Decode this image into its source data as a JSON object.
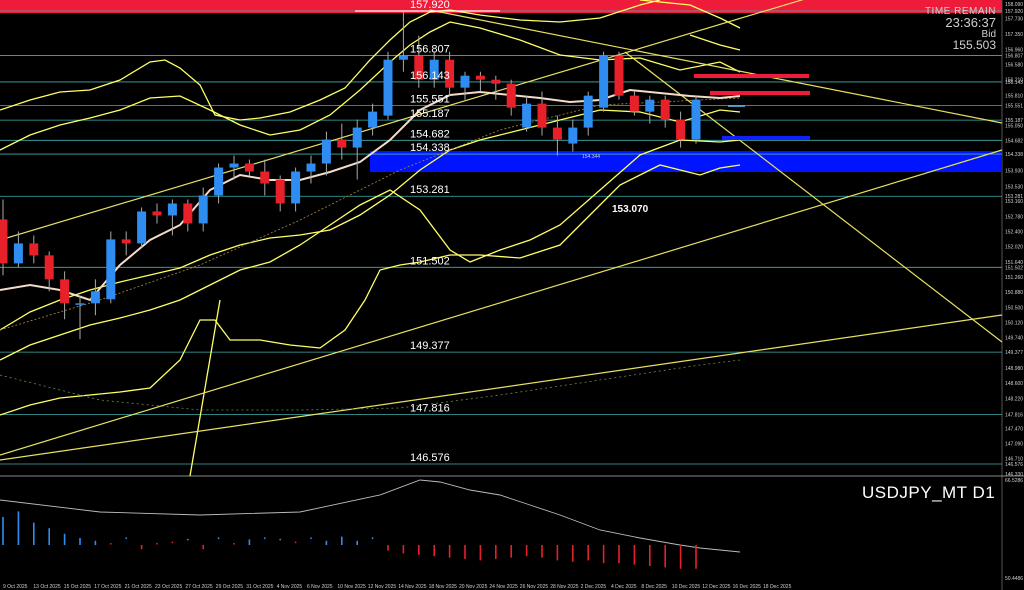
{
  "info": {
    "title": "TIME REMAIN",
    "time": "23:36:37",
    "bid_label": "Bid",
    "bid_price": "155.503"
  },
  "symbol": "USDJPY_MT D1",
  "colors": {
    "up": "#2f8cf0",
    "down": "#e8202a",
    "band": "#ffff66",
    "ma": "#f5dcc8",
    "level": "#40b0b0",
    "zone": "#0014ff"
  },
  "chart_data": {
    "type": "candlestick",
    "levels": [
      "157.920",
      "156.807",
      "156.143",
      "155.551",
      "155.187",
      "154.682",
      "154.338",
      "153.281",
      "151.502",
      "149.377",
      "147.816",
      "146.576"
    ],
    "low_marker": "153.070",
    "small_marker": "154.344",
    "price_scale": [
      "158.090",
      "157.920",
      "157.730",
      "157.350",
      "156.960",
      "156.807",
      "156.580",
      "156.210",
      "156.143",
      "155.810",
      "155.551",
      "155.187",
      "155.050",
      "154.682",
      "154.338",
      "153.930",
      "153.530",
      "153.281",
      "153.160",
      "152.780",
      "152.400",
      "152.020",
      "151.640",
      "151.502",
      "151.260",
      "150.880",
      "150.500",
      "150.120",
      "149.740",
      "149.377",
      "148.980",
      "148.600",
      "148.220",
      "147.816",
      "147.470",
      "147.090",
      "146.710",
      "146.576",
      "146.330"
    ],
    "osc_scale": [
      "66.5286",
      "50.4486"
    ],
    "dates": [
      "9 Oct 2025",
      "13 Oct 2025",
      "15 Oct 2025",
      "17 Oct 2025",
      "21 Oct 2025",
      "23 Oct 2025",
      "27 Oct 2025",
      "29 Oct 2025",
      "31 Oct 2025",
      "4 Nov 2025",
      "6 Nov 2025",
      "10 Nov 2025",
      "12 Nov 2025",
      "14 Nov 2025",
      "18 Nov 2025",
      "20 Nov 2025",
      "24 Nov 2025",
      "26 Nov 2025",
      "28 Nov 2025",
      "2 Dec 2025",
      "4 Dec 2025",
      "8 Dec 2025",
      "10 Dec 2025",
      "12 Dec 2025",
      "16 Dec 2025",
      "18 Dec 2025"
    ],
    "candles": [
      {
        "o": 152.7,
        "h": 153.2,
        "l": 151.3,
        "c": 151.6
      },
      {
        "o": 151.6,
        "h": 152.4,
        "l": 151.5,
        "c": 152.1
      },
      {
        "o": 152.1,
        "h": 152.3,
        "l": 151.6,
        "c": 151.8
      },
      {
        "o": 151.8,
        "h": 151.9,
        "l": 150.9,
        "c": 151.2
      },
      {
        "o": 151.2,
        "h": 151.4,
        "l": 150.2,
        "c": 150.6
      },
      {
        "o": 150.6,
        "h": 150.8,
        "l": 149.7,
        "c": 150.6
      },
      {
        "o": 150.6,
        "h": 151.2,
        "l": 150.3,
        "c": 150.9
      },
      {
        "o": 150.7,
        "h": 152.4,
        "l": 150.6,
        "c": 152.2
      },
      {
        "o": 152.2,
        "h": 152.4,
        "l": 151.8,
        "c": 152.1
      },
      {
        "o": 152.1,
        "h": 153.0,
        "l": 152.0,
        "c": 152.9
      },
      {
        "o": 152.9,
        "h": 153.1,
        "l": 152.6,
        "c": 152.8
      },
      {
        "o": 152.8,
        "h": 153.2,
        "l": 152.3,
        "c": 153.1
      },
      {
        "o": 153.1,
        "h": 153.2,
        "l": 152.4,
        "c": 152.6
      },
      {
        "o": 152.6,
        "h": 153.5,
        "l": 152.4,
        "c": 153.3
      },
      {
        "o": 153.3,
        "h": 154.1,
        "l": 153.1,
        "c": 154.0
      },
      {
        "o": 154.0,
        "h": 154.3,
        "l": 153.7,
        "c": 154.1
      },
      {
        "o": 154.1,
        "h": 154.2,
        "l": 153.8,
        "c": 153.9
      },
      {
        "o": 153.9,
        "h": 154.2,
        "l": 153.3,
        "c": 153.6
      },
      {
        "o": 153.7,
        "h": 153.8,
        "l": 152.9,
        "c": 153.1
      },
      {
        "o": 153.1,
        "h": 154.0,
        "l": 152.9,
        "c": 153.9
      },
      {
        "o": 153.9,
        "h": 154.3,
        "l": 153.6,
        "c": 154.1
      },
      {
        "o": 154.1,
        "h": 154.9,
        "l": 153.8,
        "c": 154.7
      },
      {
        "o": 154.7,
        "h": 155.1,
        "l": 154.2,
        "c": 154.5
      },
      {
        "o": 154.5,
        "h": 155.2,
        "l": 153.7,
        "c": 155.0
      },
      {
        "o": 155.0,
        "h": 155.6,
        "l": 154.8,
        "c": 155.4
      },
      {
        "o": 155.3,
        "h": 156.9,
        "l": 155.2,
        "c": 156.7
      },
      {
        "o": 156.7,
        "h": 157.9,
        "l": 156.4,
        "c": 156.8
      },
      {
        "o": 156.8,
        "h": 157.3,
        "l": 156.0,
        "c": 156.2
      },
      {
        "o": 156.2,
        "h": 156.9,
        "l": 156.0,
        "c": 156.7
      },
      {
        "o": 156.7,
        "h": 156.9,
        "l": 155.8,
        "c": 156.0
      },
      {
        "o": 156.0,
        "h": 156.4,
        "l": 155.7,
        "c": 156.3
      },
      {
        "o": 156.3,
        "h": 156.4,
        "l": 155.9,
        "c": 156.2
      },
      {
        "o": 156.2,
        "h": 156.3,
        "l": 155.7,
        "c": 156.1
      },
      {
        "o": 156.1,
        "h": 156.2,
        "l": 155.3,
        "c": 155.5
      },
      {
        "o": 155.0,
        "h": 155.8,
        "l": 154.9,
        "c": 155.6
      },
      {
        "o": 155.6,
        "h": 155.9,
        "l": 154.8,
        "c": 155.0
      },
      {
        "o": 155.0,
        "h": 155.3,
        "l": 154.3,
        "c": 154.7
      },
      {
        "o": 154.6,
        "h": 155.2,
        "l": 154.4,
        "c": 155.0
      },
      {
        "o": 155.0,
        "h": 155.9,
        "l": 154.8,
        "c": 155.8
      },
      {
        "o": 155.5,
        "h": 156.9,
        "l": 155.4,
        "c": 156.8
      },
      {
        "o": 156.8,
        "h": 156.9,
        "l": 155.7,
        "c": 155.8
      },
      {
        "o": 155.8,
        "h": 155.9,
        "l": 155.3,
        "c": 155.4
      },
      {
        "o": 155.4,
        "h": 155.8,
        "l": 155.1,
        "c": 155.7
      },
      {
        "o": 155.7,
        "h": 155.8,
        "l": 155.0,
        "c": 155.2
      },
      {
        "o": 155.2,
        "h": 155.4,
        "l": 154.5,
        "c": 154.7
      },
      {
        "o": 154.7,
        "h": 155.8,
        "l": 154.6,
        "c": 155.7
      }
    ],
    "oscillator": [
      2,
      2.4,
      1.6,
      1.2,
      0.8,
      0.5,
      0.3,
      -0.2,
      0.2,
      -0.3,
      -0.2,
      -0.1,
      0.1,
      -0.3,
      0.2,
      -0.2,
      0.4,
      0.2,
      0.1,
      -0.1,
      0.2,
      0.3,
      0.6,
      0.3,
      0.2,
      -0.4,
      -0.6,
      -0.7,
      -0.8,
      -0.9,
      -1,
      -1.1,
      -1,
      -0.9,
      -0.8,
      -0.9,
      -1.1,
      -1.2,
      -1.1,
      -1.3,
      -1.3,
      -1.4,
      -1.5,
      -1.6,
      -1.7,
      -1.7
    ]
  }
}
